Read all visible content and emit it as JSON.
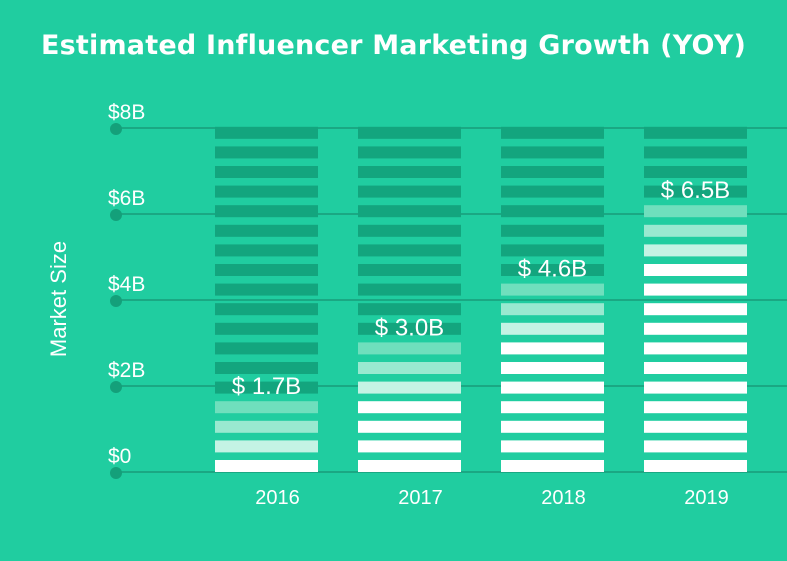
{
  "chart_data": {
    "type": "bar",
    "title": "Estimated Influencer Marketing Growth (YOY)",
    "ylabel": "Market Size",
    "xlabel": "",
    "categories": [
      "2016",
      "2017",
      "2018",
      "2019"
    ],
    "values": [
      1.7,
      3.0,
      4.6,
      6.5
    ],
    "data_labels": [
      "$ 1.7B",
      "$ 3.0B",
      "$ 4.6B",
      "$ 6.5B"
    ],
    "y_ticks": [
      {
        "value": 0,
        "label": "$0"
      },
      {
        "value": 2,
        "label": "$2B"
      },
      {
        "value": 4,
        "label": "$4B"
      },
      {
        "value": 6,
        "label": "$6B"
      },
      {
        "value": 8,
        "label": "$8B"
      }
    ],
    "ylim": [
      0,
      8
    ],
    "grid": true,
    "legend": "none",
    "colors": {
      "background": "#20cda0",
      "filled_stripe": "#ffffff",
      "fade_1": "#c4f3e4",
      "fade_2": "#99e9d0",
      "fade_3": "#6fdfbd",
      "empty_stripe": "#13a57e",
      "gridline": "#1aa883",
      "tick_dot": "#14a07a"
    }
  }
}
